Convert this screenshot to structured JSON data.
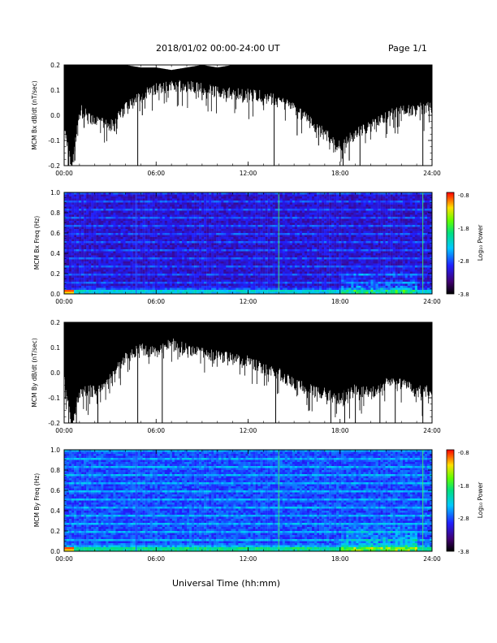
{
  "header": {
    "title": "2018/01/02  00:00-24:00 UT",
    "page": "Page 1/1"
  },
  "xlabel": "Universal Time (hh:mm)",
  "colorbar": {
    "label": "Log₁₀ Power",
    "ticks": [
      "-0.8",
      "-1.8",
      "-2.8",
      "-3.8"
    ]
  },
  "chart_data": [
    {
      "type": "line",
      "ylabel": "MCM Bx dB/dt (nT/sec)",
      "ylim": [
        -0.2,
        0.2
      ],
      "yticks": [
        "0.2",
        "0.1",
        "0.0",
        "-0.1",
        "-0.2"
      ],
      "xticks": [
        "00:00",
        "06:00",
        "12:00",
        "18:00",
        "24:00"
      ],
      "envelope": {
        "hours": [
          0,
          0.5,
          1,
          2,
          3,
          4,
          5,
          6,
          7,
          8,
          9,
          10,
          11,
          12,
          13,
          14,
          15,
          16,
          17,
          18,
          19,
          20,
          21,
          22,
          23,
          24
        ],
        "upper": [
          0.2,
          0.2,
          0.2,
          0.2,
          0.2,
          0.2,
          0.19,
          0.19,
          0.18,
          0.19,
          0.2,
          0.19,
          0.2,
          0.2,
          0.2,
          0.2,
          0.2,
          0.2,
          0.2,
          0.2,
          0.2,
          0.2,
          0.2,
          0.2,
          0.2,
          0.2
        ],
        "lower": [
          0.0,
          -0.2,
          0.05,
          0.0,
          -0.02,
          0.05,
          0.1,
          0.13,
          0.14,
          0.14,
          0.13,
          0.12,
          0.11,
          0.11,
          0.1,
          0.08,
          0.05,
          0.0,
          -0.05,
          -0.1,
          -0.05,
          -0.02,
          0.02,
          0.04,
          0.05,
          0.06
        ],
        "spikes": [
          [
            0.3,
            -0.2
          ],
          [
            0.7,
            -0.18
          ],
          [
            1.3,
            -0.05
          ],
          [
            4.8,
            -0.2
          ],
          [
            5.1,
            0.0
          ],
          [
            9.0,
            0.06
          ],
          [
            13.7,
            -0.2
          ],
          [
            15.2,
            -0.08
          ],
          [
            16.6,
            -0.12
          ],
          [
            18.2,
            -0.2
          ],
          [
            18.6,
            -0.18
          ],
          [
            19.3,
            -0.2
          ],
          [
            21.5,
            -0.05
          ],
          [
            23.4,
            -0.2
          ]
        ]
      }
    },
    {
      "type": "heatmap",
      "ylabel": "MCM Bx Freq (Hz)",
      "ylim": [
        0.0,
        1.0
      ],
      "yticks": [
        "1.0",
        "0.8",
        "0.6",
        "0.4",
        "0.2",
        "0.0"
      ],
      "xticks": [
        "00:00",
        "06:00",
        "12:00",
        "18:00",
        "24:00"
      ],
      "zlim": [
        -3.8,
        -0.8
      ]
    },
    {
      "type": "line",
      "ylabel": "MCM By dB/dt (nT/sec)",
      "ylim": [
        -0.2,
        0.2
      ],
      "yticks": [
        "0.2",
        "0.1",
        "0.0",
        "-0.1",
        "-0.2"
      ],
      "xticks": [
        "00:00",
        "06:00",
        "12:00",
        "18:00",
        "24:00"
      ],
      "envelope": {
        "hours": [
          0,
          0.5,
          1,
          2,
          3,
          4,
          5,
          6,
          7,
          8,
          9,
          10,
          11,
          12,
          13,
          14,
          15,
          16,
          17,
          18,
          19,
          20,
          21,
          22,
          23,
          24
        ],
        "upper": [
          0.2,
          0.2,
          0.2,
          0.2,
          0.2,
          0.2,
          0.2,
          0.2,
          0.2,
          0.2,
          0.2,
          0.2,
          0.2,
          0.2,
          0.2,
          0.2,
          0.2,
          0.2,
          0.2,
          0.2,
          0.2,
          0.2,
          0.2,
          0.2,
          0.2,
          0.2
        ],
        "lower": [
          0.0,
          -0.2,
          -0.05,
          -0.05,
          0.0,
          0.08,
          0.12,
          0.1,
          0.14,
          0.12,
          0.1,
          0.09,
          0.08,
          0.07,
          0.04,
          0.02,
          -0.02,
          -0.04,
          -0.06,
          -0.08,
          -0.04,
          -0.06,
          -0.02,
          -0.02,
          -0.05,
          -0.05
        ],
        "spikes": [
          [
            0.3,
            -0.2
          ],
          [
            0.8,
            -0.2
          ],
          [
            2.2,
            -0.2
          ],
          [
            4.8,
            -0.2
          ],
          [
            6.4,
            -0.2
          ],
          [
            13.8,
            -0.2
          ],
          [
            16.0,
            -0.15
          ],
          [
            17.4,
            -0.2
          ],
          [
            18.3,
            -0.2
          ],
          [
            19.0,
            -0.2
          ],
          [
            20.6,
            -0.2
          ],
          [
            21.6,
            -0.2
          ],
          [
            23.4,
            -0.2
          ]
        ]
      }
    },
    {
      "type": "heatmap",
      "ylabel": "MCM By Freq (Hz)",
      "ylim": [
        0.0,
        1.0
      ],
      "yticks": [
        "1.0",
        "0.8",
        "0.6",
        "0.4",
        "0.2",
        "0.0"
      ],
      "xticks": [
        "00:00",
        "06:00",
        "12:00",
        "18:00",
        "24:00"
      ],
      "zlim": [
        -3.8,
        -0.8
      ]
    }
  ]
}
